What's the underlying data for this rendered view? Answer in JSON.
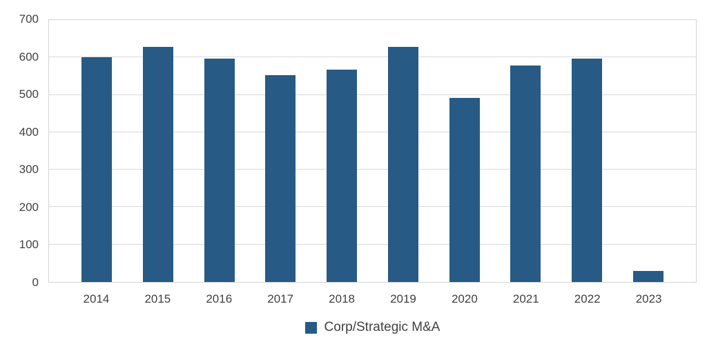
{
  "chart_data": {
    "type": "bar",
    "title": "",
    "categories": [
      "2014",
      "2015",
      "2016",
      "2017",
      "2018",
      "2019",
      "2020",
      "2021",
      "2022",
      "2023"
    ],
    "series": [
      {
        "name": "Corp/Strategic M&A",
        "values": [
          600,
          629,
          596,
          553,
          567,
          629,
          492,
          579,
          597,
          29
        ]
      }
    ],
    "xlabel": "",
    "ylabel": "",
    "ylim": [
      0,
      700
    ],
    "ytick_step": 100,
    "yticks": [
      "0",
      "100",
      "200",
      "300",
      "400",
      "500",
      "600",
      "700"
    ],
    "grid": "horizontal",
    "legend_position": "bottom"
  },
  "legend": {
    "label": "Corp/Strategic M&A"
  },
  "colors": {
    "bar": "#275A84",
    "gridline": "#D9D9D9",
    "plot_border": "#D4D4D4",
    "tick_text": "#404040",
    "legend_text": "#404040",
    "background": "#FFFFFF"
  }
}
